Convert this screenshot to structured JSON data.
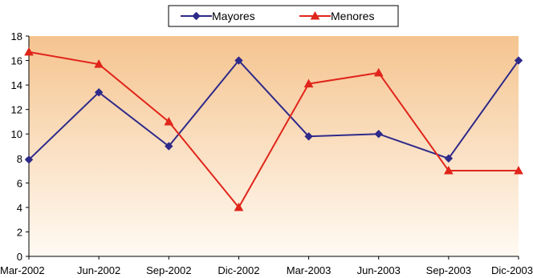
{
  "chart_data": {
    "type": "line",
    "categories": [
      "Mar-2002",
      "Jun-2002",
      "Sep-2002",
      "Dic-2002",
      "Mar-2003",
      "Jun-2003",
      "Sep-2003",
      "Dic-2003"
    ],
    "series": [
      {
        "name": "Mayores",
        "color": "#2e2a8a",
        "marker": "diamond",
        "values": [
          7.9,
          13.4,
          9.0,
          16.0,
          9.8,
          10.0,
          8.0,
          16.0
        ]
      },
      {
        "name": "Menores",
        "color": "#e0251b",
        "marker": "triangle",
        "values": [
          16.7,
          15.7,
          11.0,
          4.0,
          14.1,
          15.0,
          7.0,
          7.0
        ]
      }
    ],
    "y_ticks": [
      "0",
      "2",
      "4",
      "6",
      "8",
      "10",
      "12",
      "14",
      "16",
      "18"
    ],
    "ylim": [
      0,
      18
    ],
    "legend_position": "top-center",
    "background_gradient": [
      "#f5c48f",
      "#fffaf3"
    ]
  }
}
